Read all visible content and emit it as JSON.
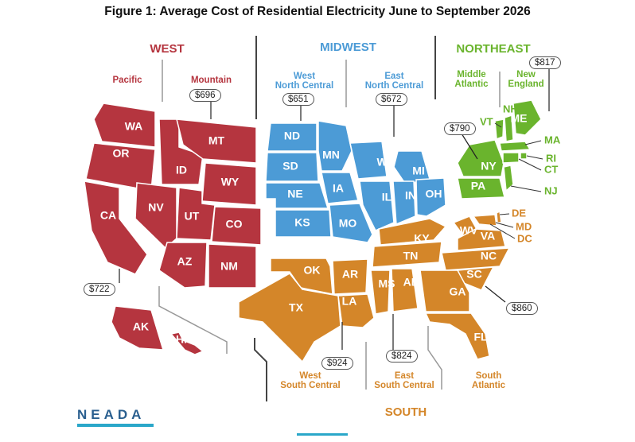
{
  "title": "Figure 1: Average Cost of Residential Electricity June to September 2026",
  "colors": {
    "west": "#b5353f",
    "midwest": "#4c9bd6",
    "northeast": "#6ab42d",
    "south": "#d48629",
    "divider": "#444444"
  },
  "regions": {
    "west": {
      "name": "WEST",
      "subregions": [
        {
          "name": "Pacific",
          "cost": ""
        },
        {
          "name": "Mountain",
          "cost": "$696"
        }
      ],
      "pacific_cost": "$722"
    },
    "midwest": {
      "name": "MIDWEST",
      "subregions": [
        {
          "name": "West North Central",
          "cost": "$651"
        },
        {
          "name": "East North Central",
          "cost": "$672"
        }
      ]
    },
    "northeast": {
      "name": "NORTHEAST",
      "subregions": [
        {
          "name": "Middle Atlantic",
          "cost": "$790"
        },
        {
          "name": "New England",
          "cost": "$817"
        }
      ]
    },
    "south": {
      "name": "SOUTH",
      "subregions": [
        {
          "name": "West South Central",
          "cost": "$924"
        },
        {
          "name": "East South Central",
          "cost": "$824"
        },
        {
          "name": "South Atlantic",
          "cost": "$860"
        }
      ]
    }
  },
  "labels": {
    "pacific": "Pacific",
    "mountain": "Mountain",
    "wnc": [
      "West",
      "North Central"
    ],
    "enc": [
      "East",
      "North Central"
    ],
    "midatl": [
      "Middle",
      "Atlantic"
    ],
    "newengland": [
      "New",
      "England"
    ],
    "wsc": [
      "West",
      "South Central"
    ],
    "esc": [
      "East",
      "South Central"
    ],
    "satl": [
      "South",
      "Atlantic"
    ]
  },
  "states": {
    "west": [
      "WA",
      "OR",
      "CA",
      "ID",
      "MT",
      "WY",
      "NV",
      "UT",
      "CO",
      "AZ",
      "NM",
      "AK",
      "HI"
    ],
    "midwest": [
      "ND",
      "SD",
      "NE",
      "KS",
      "MN",
      "IA",
      "MO",
      "WI",
      "MI",
      "IL",
      "IN",
      "OH"
    ],
    "northeast": [
      "NY",
      "PA",
      "VT",
      "NH",
      "ME",
      "MA",
      "RI",
      "CT",
      "NJ"
    ],
    "south": [
      "OK",
      "TX",
      "AR",
      "LA",
      "MS",
      "AL",
      "TN",
      "KY",
      "WV",
      "VA",
      "NC",
      "SC",
      "GA",
      "FL",
      "DE",
      "MD",
      "DC"
    ]
  },
  "logo": "NEADA"
}
